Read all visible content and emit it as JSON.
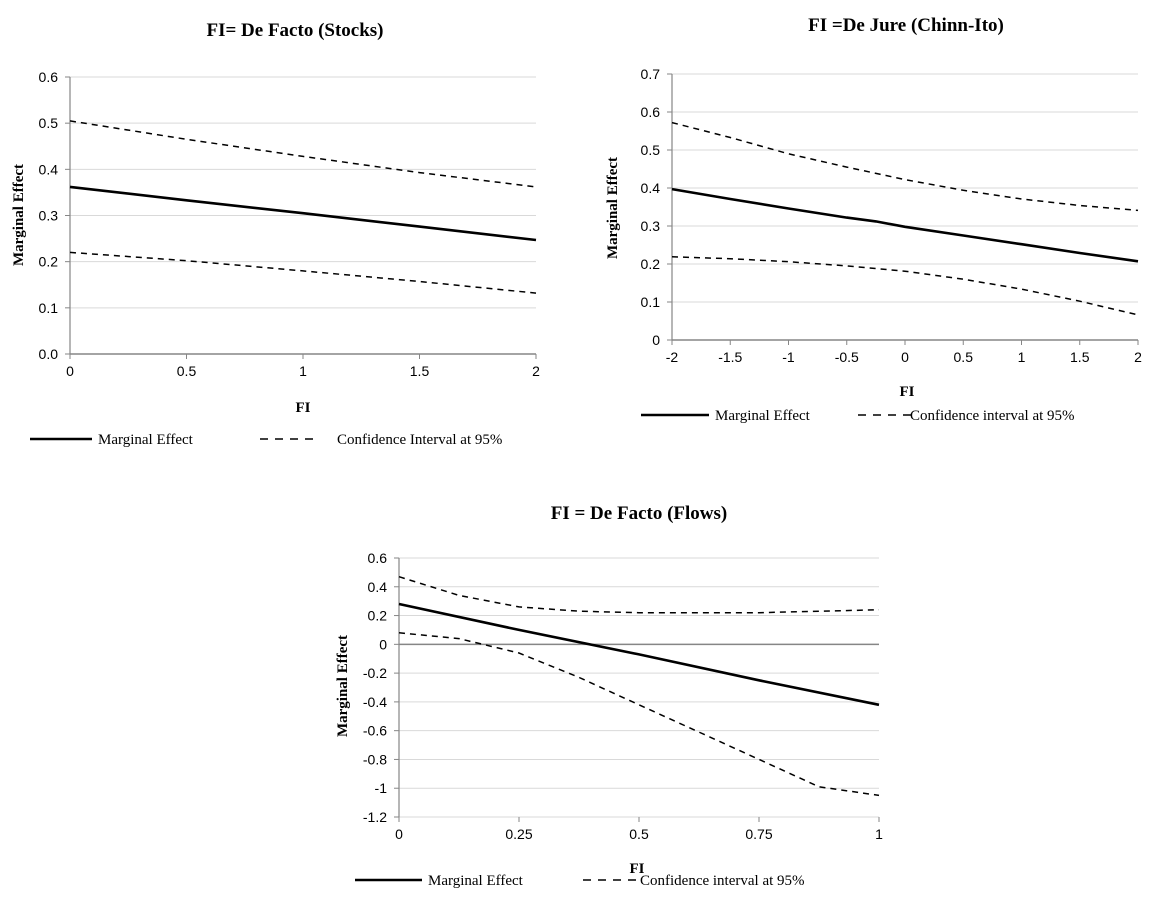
{
  "chart_data": [
    {
      "type": "line",
      "title": "FI= De Facto (Stocks)",
      "xlabel": "FI",
      "ylabel": "Marginal Effect",
      "xlim": [
        0,
        2
      ],
      "ylim": [
        0,
        0.6
      ],
      "x_ticks": [
        0,
        0.5,
        1,
        1.5,
        2
      ],
      "x_tick_labels": [
        "0",
        "0.5",
        "1",
        "1.5",
        "2"
      ],
      "y_ticks": [
        0,
        0.1,
        0.2,
        0.3,
        0.4,
        0.5,
        0.6
      ],
      "y_tick_labels": [
        "0.0",
        "0.1",
        "0.2",
        "0.3",
        "0.4",
        "0.5",
        "0.6"
      ],
      "grid": true,
      "legend_position": "bottom",
      "legend": [
        "Marginal Effect",
        "Confidence Interval at 95%"
      ],
      "series": [
        {
          "name": "Marginal Effect",
          "style": "solid",
          "x": [
            0,
            0.5,
            1,
            1.5,
            2
          ],
          "y": [
            0.362,
            0.333,
            0.305,
            0.276,
            0.247
          ]
        },
        {
          "name": "Confidence Interval at 95%",
          "style": "dashed",
          "x": [
            0,
            0.5,
            1,
            1.5,
            2
          ],
          "y": [
            0.505,
            0.465,
            0.428,
            0.393,
            0.362
          ]
        },
        {
          "name": "Confidence Interval at 95%",
          "style": "dashed",
          "x": [
            0,
            0.5,
            1,
            1.5,
            2
          ],
          "y": [
            0.22,
            0.202,
            0.18,
            0.157,
            0.132
          ]
        }
      ]
    },
    {
      "type": "line",
      "title": "FI =De Jure (Chinn-Ito)",
      "xlabel": "FI",
      "ylabel": "Marginal Effect",
      "xlim": [
        -2,
        2
      ],
      "ylim": [
        0,
        0.7
      ],
      "x_ticks": [
        -2,
        -1.5,
        -1,
        -0.5,
        0,
        0.5,
        1,
        1.5,
        2
      ],
      "x_tick_labels": [
        "-2",
        "-1.5",
        "-1",
        "-0.5",
        "0",
        "0.5",
        "1",
        "1.5",
        "2"
      ],
      "y_ticks": [
        0,
        0.1,
        0.2,
        0.3,
        0.4,
        0.5,
        0.6,
        0.7
      ],
      "y_tick_labels": [
        "0",
        "0.1",
        "0.2",
        "0.3",
        "0.4",
        "0.5",
        "0.6",
        "0.7"
      ],
      "grid": true,
      "legend_position": "bottom",
      "legend": [
        "Marginal Effect",
        "Confidence interval at 95%"
      ],
      "series": [
        {
          "name": "Marginal Effect",
          "style": "solid",
          "x": [
            -2,
            -1.5,
            -1,
            -0.5,
            -0.25,
            0,
            0.5,
            1,
            1.5,
            2
          ],
          "y": [
            0.397,
            0.371,
            0.346,
            0.322,
            0.312,
            0.298,
            0.275,
            0.252,
            0.229,
            0.207
          ]
        },
        {
          "name": "Confidence interval at 95%",
          "style": "dashed",
          "x": [
            -2,
            -1.5,
            -1,
            -0.5,
            0,
            0.5,
            1,
            1.5,
            2
          ],
          "y": [
            0.572,
            0.533,
            0.49,
            0.455,
            0.422,
            0.394,
            0.371,
            0.354,
            0.341
          ]
        },
        {
          "name": "Confidence interval at 95%",
          "style": "dashed",
          "x": [
            -2,
            -1.5,
            -1,
            -0.5,
            0,
            0.5,
            1,
            1.5,
            2
          ],
          "y": [
            0.219,
            0.214,
            0.206,
            0.195,
            0.181,
            0.16,
            0.134,
            0.102,
            0.066
          ]
        }
      ]
    },
    {
      "type": "line",
      "title": "FI = De Facto (Flows)",
      "xlabel": "FI",
      "ylabel": "Marginal Effect",
      "xlim": [
        0,
        1
      ],
      "ylim": [
        -1.2,
        0.6
      ],
      "x_ticks": [
        0,
        0.25,
        0.5,
        0.75,
        1
      ],
      "x_tick_labels": [
        "0",
        "0.25",
        "0.5",
        "0.75",
        "1"
      ],
      "y_ticks": [
        -1.2,
        -1,
        -0.8,
        -0.6,
        -0.4,
        -0.2,
        0,
        0.2,
        0.4,
        0.6
      ],
      "y_tick_labels": [
        "-1.2",
        "-1",
        "-0.8",
        "-0.6",
        "-0.4",
        "-0.2",
        "0",
        "0.2",
        "0.4",
        "0.6"
      ],
      "grid": true,
      "legend_position": "bottom",
      "legend": [
        "Marginal Effect",
        "Confidence interval at 95%"
      ],
      "series": [
        {
          "name": "Marginal Effect",
          "style": "solid",
          "x": [
            0,
            0.25,
            0.5,
            0.75,
            1
          ],
          "y": [
            0.28,
            0.1,
            -0.07,
            -0.25,
            -0.42
          ]
        },
        {
          "name": "Confidence interval at 95%",
          "style": "dashed",
          "x": [
            0,
            0.125,
            0.25,
            0.375,
            0.5,
            0.625,
            0.75,
            0.875,
            1
          ],
          "y": [
            0.47,
            0.34,
            0.26,
            0.23,
            0.22,
            0.22,
            0.22,
            0.23,
            0.24
          ]
        },
        {
          "name": "Confidence interval at 95%",
          "style": "dashed",
          "x": [
            0,
            0.125,
            0.25,
            0.375,
            0.5,
            0.625,
            0.75,
            0.875,
            1
          ],
          "y": [
            0.08,
            0.04,
            -0.06,
            -0.23,
            -0.42,
            -0.61,
            -0.8,
            -0.99,
            -1.05
          ]
        }
      ]
    }
  ]
}
